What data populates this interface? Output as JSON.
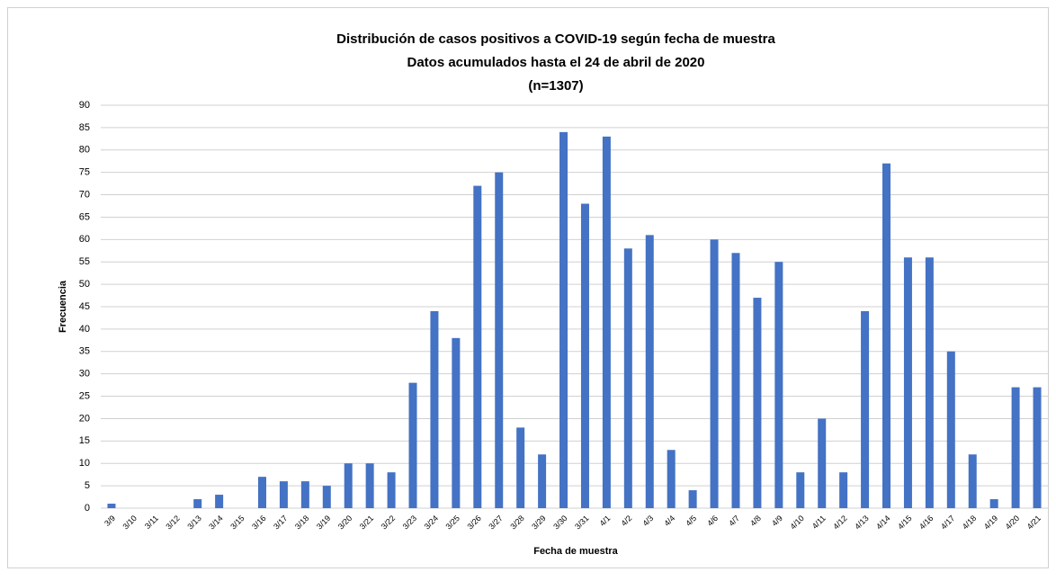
{
  "chart_data": {
    "type": "bar",
    "title": [
      "Distribución de casos positivos a COVID-19 según fecha de muestra",
      "Datos acumulados hasta el 24 de abril de 2020",
      "(n=1307)"
    ],
    "xlabel": "Fecha de muestra",
    "ylabel": "Frecuencia",
    "categories": [
      "3/9",
      "3/10",
      "3/11",
      "3/12",
      "3/13",
      "3/14",
      "3/15",
      "3/16",
      "3/17",
      "3/18",
      "3/19",
      "3/20",
      "3/21",
      "3/22",
      "3/23",
      "3/24",
      "3/25",
      "3/26",
      "3/27",
      "3/28",
      "3/29",
      "3/30",
      "3/31",
      "4/1",
      "4/2",
      "4/3",
      "4/4",
      "4/5",
      "4/6",
      "4/7",
      "4/8",
      "4/9",
      "4/10",
      "4/11",
      "4/12",
      "4/13",
      "4/14",
      "4/15",
      "4/16",
      "4/17",
      "4/18",
      "4/19",
      "4/20",
      "4/21"
    ],
    "values": [
      1,
      0,
      0,
      0,
      2,
      3,
      0,
      7,
      6,
      6,
      5,
      10,
      10,
      8,
      28,
      44,
      38,
      72,
      75,
      18,
      12,
      84,
      68,
      83,
      58,
      61,
      13,
      4,
      60,
      57,
      47,
      55,
      8,
      20,
      8,
      44,
      77,
      56,
      56,
      35,
      12,
      2,
      27,
      27
    ],
    "color": "#4472c4",
    "ylim": [
      0,
      90
    ],
    "yticks": [
      0,
      5,
      10,
      15,
      20,
      25,
      30,
      35,
      40,
      45,
      50,
      55,
      60,
      65,
      70,
      75,
      80,
      85,
      90
    ],
    "grid": true
  }
}
